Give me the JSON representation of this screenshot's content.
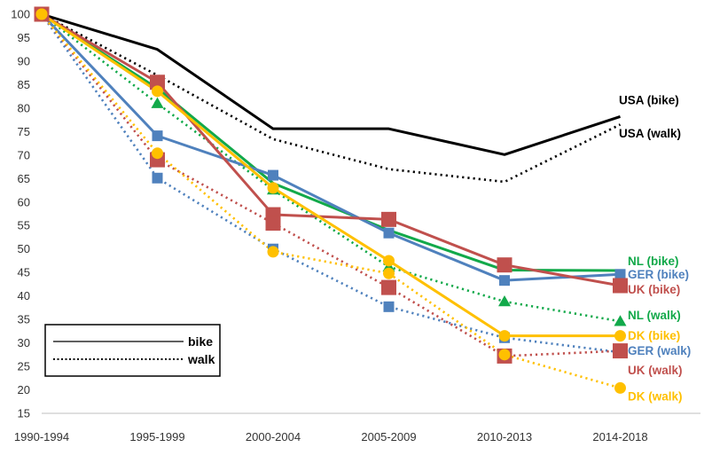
{
  "chart_data": {
    "type": "line",
    "title": "",
    "xlabel": "",
    "ylabel": "",
    "categories": [
      "1990-1994",
      "1995-1999",
      "2000-2004",
      "2005-2009",
      "2010-2013",
      "2014-2018"
    ],
    "ylim": [
      15,
      100
    ],
    "yticks": [
      15,
      20,
      25,
      30,
      35,
      40,
      45,
      50,
      55,
      60,
      65,
      70,
      75,
      80,
      85,
      90,
      95,
      100
    ],
    "grid": false,
    "legend": {
      "placement": "bottom-left",
      "entries": [
        {
          "label": "bike",
          "style": "solid"
        },
        {
          "label": "walk",
          "style": "dotted"
        }
      ]
    },
    "series": [
      {
        "name": "USA (bike)",
        "style": "solid",
        "marker": "none",
        "color": "#000000",
        "values": [
          100,
          92.5,
          75.6,
          75.6,
          70.1,
          78.2
        ]
      },
      {
        "name": "USA (walk)",
        "style": "dotted",
        "marker": "none",
        "color": "#000000",
        "values": [
          100,
          87.0,
          73.4,
          67.0,
          64.3,
          76.5
        ]
      },
      {
        "name": "NL (bike)",
        "style": "solid",
        "marker": "none",
        "color": "#12a94a",
        "values": [
          100,
          84.2,
          64.0,
          54.0,
          45.5,
          45.4
        ]
      },
      {
        "name": "NL (walk)",
        "style": "dotted",
        "marker": "triangle",
        "color": "#12a94a",
        "values": [
          100,
          81.0,
          62.6,
          46.2,
          38.8,
          34.6
        ]
      },
      {
        "name": "GER (bike)",
        "style": "solid",
        "marker": "square",
        "color": "#4f81bd",
        "values": [
          100,
          74.1,
          65.7,
          53.4,
          43.3,
          44.6
        ]
      },
      {
        "name": "GER (walk)",
        "style": "dotted",
        "marker": "square",
        "color": "#4f81bd",
        "values": [
          100,
          65.1,
          50.0,
          37.7,
          31.1,
          28.0
        ]
      },
      {
        "name": "UK (bike)",
        "style": "solid",
        "marker": "square",
        "color": "#c0504d",
        "values": [
          100,
          85.5,
          57.3,
          56.3,
          46.6,
          42.2
        ]
      },
      {
        "name": "UK (walk)",
        "style": "dotted",
        "marker": "square",
        "color": "#c0504d",
        "values": [
          100,
          69.0,
          55.5,
          41.8,
          27.2,
          28.3
        ]
      },
      {
        "name": "DK (bike)",
        "style": "solid",
        "marker": "circle",
        "color": "#ffc000",
        "values": [
          100,
          83.6,
          63.0,
          47.5,
          31.5,
          31.5
        ]
      },
      {
        "name": "DK (walk)",
        "style": "dotted",
        "marker": "circle",
        "color": "#ffc000",
        "values": [
          100,
          70.4,
          49.4,
          44.8,
          27.5,
          20.4
        ]
      }
    ],
    "end_labels": [
      {
        "text": "USA (bike)",
        "series": "USA (bike)",
        "color": "#000000",
        "y_value": 81.8
      },
      {
        "text": "USA (walk)",
        "series": "USA (walk)",
        "color": "#000000",
        "y_value": 74.7
      },
      {
        "text": "NL (bike)",
        "series": "NL (bike)",
        "color": "#12a94a",
        "y_value": 47.5
      },
      {
        "text": "GER (bike)",
        "series": "GER (bike)",
        "color": "#4f81bd",
        "y_value": 44.7
      },
      {
        "text": "UK (bike)",
        "series": "UK (bike)",
        "color": "#c0504d",
        "y_value": 41.4
      },
      {
        "text": "NL (walk)",
        "series": "NL (walk)",
        "color": "#12a94a",
        "y_value": 36.0
      },
      {
        "text": "DK  (bike)",
        "series": "DK (bike)",
        "color": "#ffc000",
        "y_value": 31.6
      },
      {
        "text": "GER (walk)",
        "series": "GER (walk)",
        "color": "#4f81bd",
        "y_value": 28.4
      },
      {
        "text": "UK  (walk)",
        "series": "UK (walk)",
        "color": "#c0504d",
        "y_value": 24.3
      },
      {
        "text": "DK  (walk)",
        "series": "DK (walk)",
        "color": "#ffc000",
        "y_value": 18.7
      }
    ]
  }
}
